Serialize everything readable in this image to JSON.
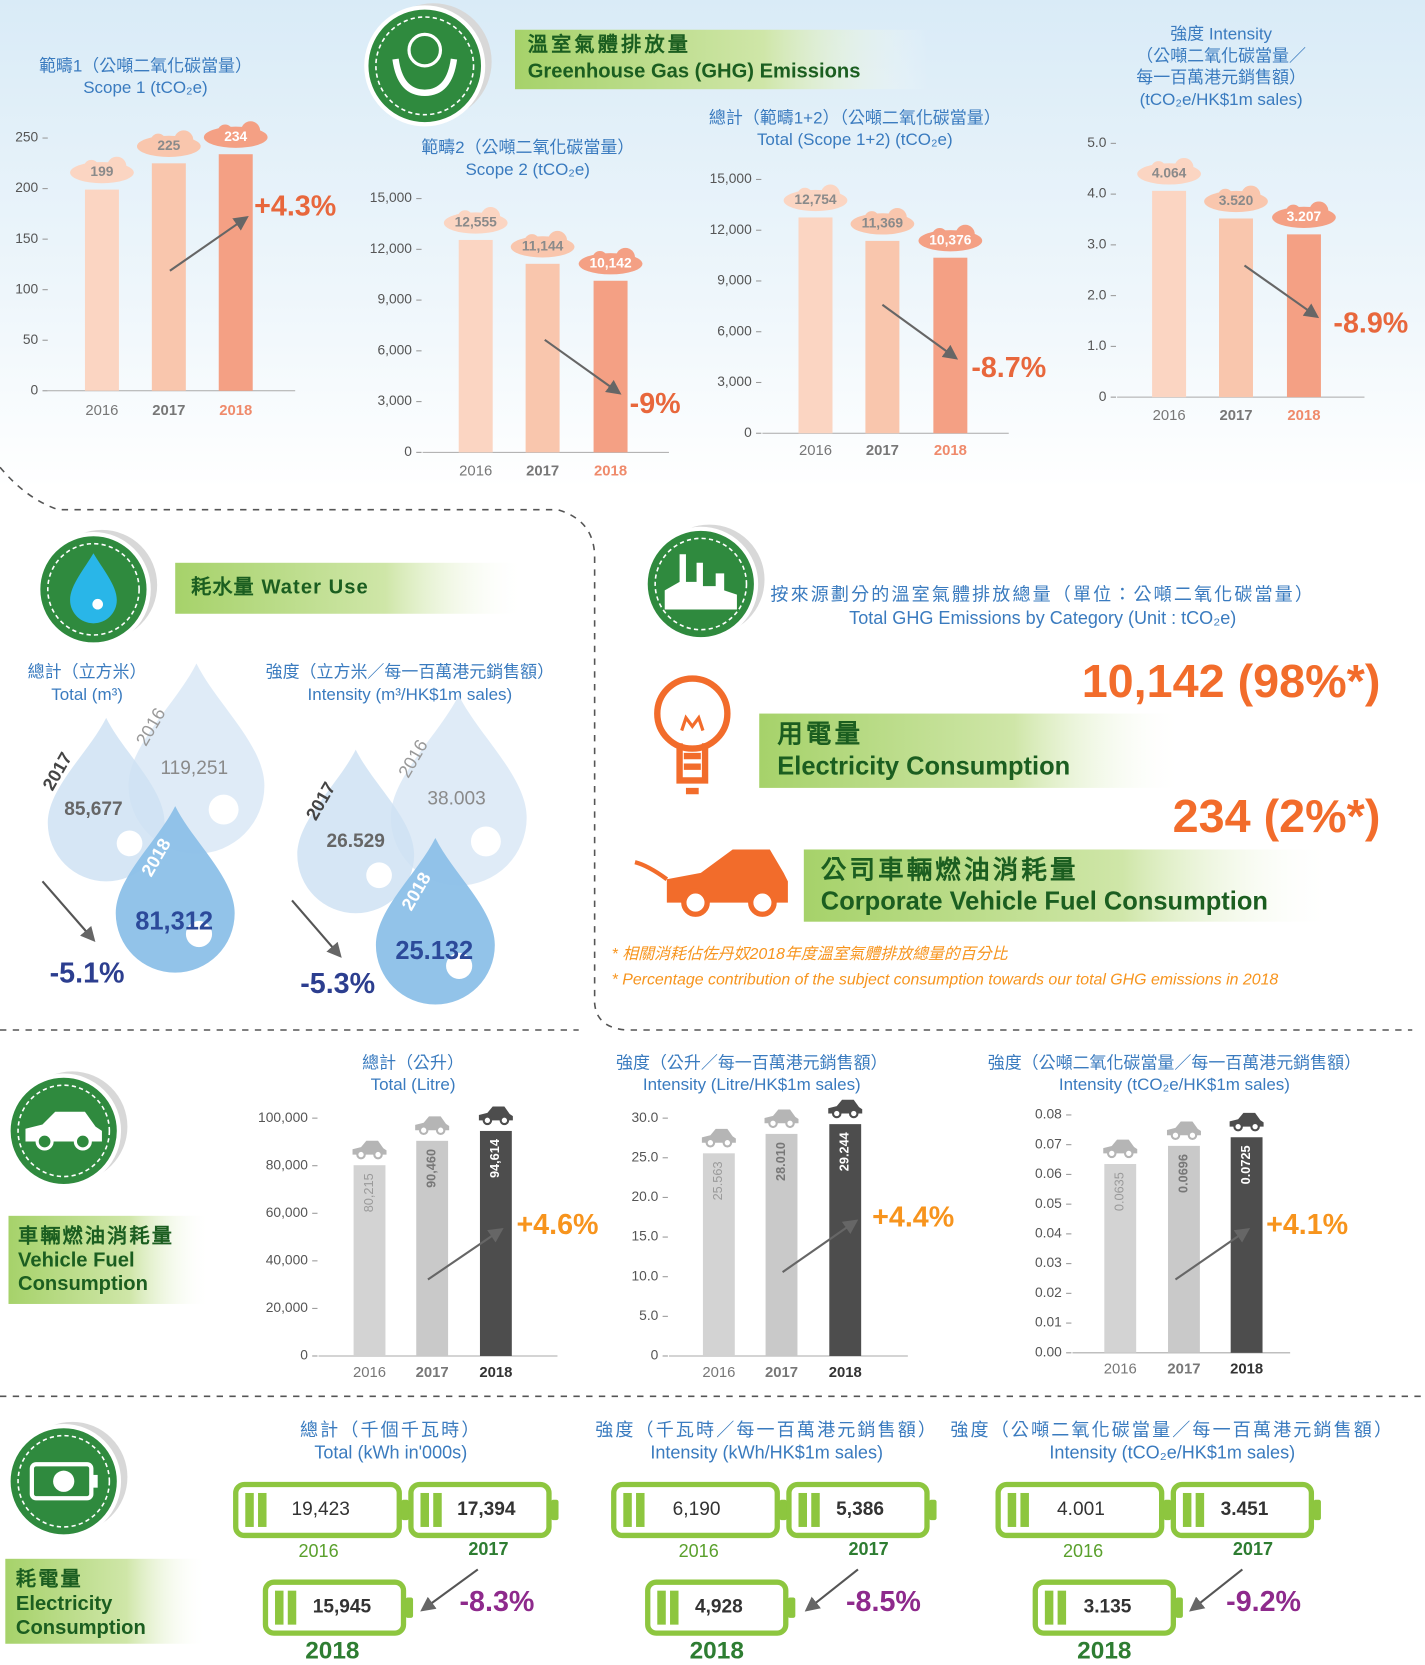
{
  "ghg": {
    "title_zh": "溫室氣體排放量",
    "title_en": "Greenhouse Gas (GHG) Emissions"
  },
  "chart_data": [
    {
      "type": "bar",
      "titles": [
        "範疇1（公噸二氧化碳當量）",
        "Scope 1 (tCO₂e)"
      ],
      "categories": [
        "2016",
        "2017",
        "2018"
      ],
      "values": [
        199,
        225,
        234
      ],
      "colors": [
        "#fbd5c2",
        "#f9c6ad",
        "#f4a084"
      ],
      "ylim": [
        0,
        250
      ],
      "yticks": [
        0,
        50,
        100,
        150,
        200,
        250
      ],
      "annotation": "+4.3%",
      "annotation_color": "#e8673c"
    },
    {
      "type": "bar",
      "titles": [
        "範疇2（公噸二氧化碳當量）",
        "Scope 2 (tCO₂e)"
      ],
      "categories": [
        "2016",
        "2017",
        "2018"
      ],
      "values": [
        12555,
        11144,
        10142
      ],
      "value_labels": [
        "12,555",
        "11,144",
        "10,142"
      ],
      "colors": [
        "#fbd5c2",
        "#f9c6ad",
        "#f4a084"
      ],
      "ylim": [
        0,
        15000
      ],
      "yticks": [
        0,
        {
          "value": 3000,
          "label": "3,000"
        },
        {
          "value": 6000,
          "label": "6,000"
        },
        {
          "value": 9000,
          "label": "9,000"
        },
        {
          "value": 12000,
          "label": "12,000"
        },
        {
          "value": 15000,
          "label": "15,000"
        }
      ],
      "annotation": "-9%",
      "annotation_color": "#e8673c"
    },
    {
      "type": "bar",
      "titles": [
        "總計（範疇1+2）（公噸二氧化碳當量）",
        "Total (Scope 1+2) (tCO₂e)"
      ],
      "categories": [
        "2016",
        "2017",
        "2018"
      ],
      "values": [
        12754,
        11369,
        10376
      ],
      "value_labels": [
        "12,754",
        "11,369",
        "10,376"
      ],
      "colors": [
        "#fbd5c2",
        "#f9c6ad",
        "#f4a084"
      ],
      "ylim": [
        0,
        15000
      ],
      "yticks": [
        0,
        {
          "value": 3000,
          "label": "3,000"
        },
        {
          "value": 6000,
          "label": "6,000"
        },
        {
          "value": 9000,
          "label": "9,000"
        },
        {
          "value": 12000,
          "label": "12,000"
        },
        {
          "value": 15000,
          "label": "15,000"
        }
      ],
      "annotation": "-8.7%",
      "annotation_color": "#e8673c"
    },
    {
      "type": "bar",
      "titles": [
        "強度 Intensity",
        "（公噸二氧化碳當量／",
        "每一百萬港元銷售額）",
        "(tCO₂e/HK$1m sales)"
      ],
      "categories": [
        "2016",
        "2017",
        "2018"
      ],
      "values": [
        4.064,
        3.52,
        3.207
      ],
      "value_labels": [
        "4.064",
        "3.520",
        "3.207"
      ],
      "colors": [
        "#fbd5c2",
        "#f9c6ad",
        "#f4a084"
      ],
      "ylim": [
        0,
        5
      ],
      "yticks": [
        0,
        {
          "value": 1,
          "label": "1.0"
        },
        {
          "value": 2,
          "label": "2.0"
        },
        {
          "value": 3,
          "label": "3.0"
        },
        {
          "value": 4,
          "label": "4.0"
        },
        {
          "value": 5,
          "label": "5.0"
        }
      ],
      "annotation": "-8.9%",
      "annotation_color": "#e8673c"
    },
    {
      "type": "bar",
      "titles": [
        "總計（公升）",
        "Total (Litre)"
      ],
      "categories": [
        "2016",
        "2017",
        "2018"
      ],
      "values": [
        80215,
        90460,
        94614
      ],
      "value_labels": [
        "80,215",
        "90,460",
        "94,614"
      ],
      "colors": [
        "#d3d3d3",
        "#c9c9c9",
        "#4d4d4d"
      ],
      "ylim": [
        0,
        100000
      ],
      "yticks": [
        0,
        {
          "value": 20000,
          "label": "20,000"
        },
        {
          "value": 40000,
          "label": "40,000"
        },
        {
          "value": 60000,
          "label": "60,000"
        },
        {
          "value": 80000,
          "label": "80,000"
        },
        {
          "value": 100000,
          "label": "100,000"
        }
      ],
      "annotation": "+4.6%",
      "annotation_color": "#f7941d"
    },
    {
      "type": "bar",
      "titles": [
        "強度（公升／每一百萬港元銷售額）",
        "Intensity (Litre/HK$1m sales)"
      ],
      "categories": [
        "2016",
        "2017",
        "2018"
      ],
      "values": [
        25.563,
        28.01,
        29.244
      ],
      "value_labels": [
        "25.563",
        "28.010",
        "29.244"
      ],
      "colors": [
        "#d3d3d3",
        "#c9c9c9",
        "#4d4d4d"
      ],
      "ylim": [
        0,
        30
      ],
      "yticks": [
        0,
        {
          "value": 5,
          "label": "5.0"
        },
        {
          "value": 10,
          "label": "10.0"
        },
        {
          "value": 15,
          "label": "15.0"
        },
        {
          "value": 20,
          "label": "20.0"
        },
        {
          "value": 25,
          "label": "25.0"
        },
        {
          "value": 30,
          "label": "30.0"
        }
      ],
      "annotation": "+4.4%",
      "annotation_color": "#f7941d"
    },
    {
      "type": "bar",
      "titles": [
        "強度（公噸二氧化碳當量／每一百萬港元銷售額）",
        "Intensity (tCO₂e/HK$1m sales)"
      ],
      "categories": [
        "2016",
        "2017",
        "2018"
      ],
      "values": [
        0.0635,
        0.0696,
        0.0725
      ],
      "colors": [
        "#d3d3d3",
        "#c9c9c9",
        "#4d4d4d"
      ],
      "ylim": [
        0,
        0.08
      ],
      "yticks": [
        {
          "value": 0,
          "label": "0.00"
        },
        0.01,
        0.02,
        0.03,
        0.04,
        0.05,
        0.06,
        0.07,
        0.08
      ],
      "annotation": "+4.1%",
      "annotation_color": "#f7941d"
    }
  ],
  "water": {
    "title": "耗水量 Water Use",
    "groups": [
      {
        "titles": [
          "總計（立方米）",
          "Total (m³)"
        ],
        "years": [
          "2016",
          "2017",
          "2018"
        ],
        "values": [
          "119,251",
          "85,677",
          "81,312"
        ],
        "change": "-5.1%"
      },
      {
        "titles": [
          "強度（立方米／每一百萬港元銷售額）",
          "Intensity (m³/HK$1m sales)"
        ],
        "years": [
          "2016",
          "2017",
          "2018"
        ],
        "values": [
          "38.003",
          "26.529",
          "25.132"
        ],
        "change": "-5.3%"
      }
    ]
  },
  "category": {
    "titles": [
      "按來源劃分的溫室氣體排放總量（單位：公噸二氧化碳當量）",
      "Total GHG Emissions by Category (Unit : tCO₂e)"
    ],
    "items": [
      {
        "value": "10,142 (98%*)",
        "name_zh": "用電量",
        "name_en": "Electricity Consumption"
      },
      {
        "value": "234 (2%*)",
        "name_zh": "公司車輛燃油消耗量",
        "name_en": "Corporate Vehicle Fuel Consumption"
      }
    ],
    "notes": [
      "* 相關消耗佔佐丹奴2018年度溫室氣體排放總量的百分比",
      "* Percentage contribution of the subject consumption towards our total GHG emissions in 2018"
    ]
  },
  "vehicle": {
    "title": [
      "車輛燃油消耗量",
      "Vehicle Fuel",
      "Consumption"
    ]
  },
  "electricity": {
    "title": [
      "耗電量",
      "Electricity",
      "Consumption"
    ],
    "groups": [
      {
        "titles": [
          "總計（千個千瓦時）",
          "Total (kWh in'000s)"
        ],
        "years": [
          "2016",
          "2017",
          "2018"
        ],
        "values": [
          "19,423",
          "17,394",
          "15,945"
        ],
        "change": "-8.3%"
      },
      {
        "titles": [
          "強度（千瓦時／每一百萬港元銷售額）",
          "Intensity (kWh/HK$1m sales)"
        ],
        "years": [
          "2016",
          "2017",
          "2018"
        ],
        "values": [
          "6,190",
          "5,386",
          "4,928"
        ],
        "change": "-8.5%"
      },
      {
        "titles": [
          "強度（公噸二氧化碳當量／每一百萬港元銷售額）",
          "Intensity (tCO₂e/HK$1m sales)"
        ],
        "years": [
          "2016",
          "2017",
          "2018"
        ],
        "values": [
          "4.001",
          "3.451",
          "3.135"
        ],
        "change": "-9.2%"
      }
    ]
  }
}
